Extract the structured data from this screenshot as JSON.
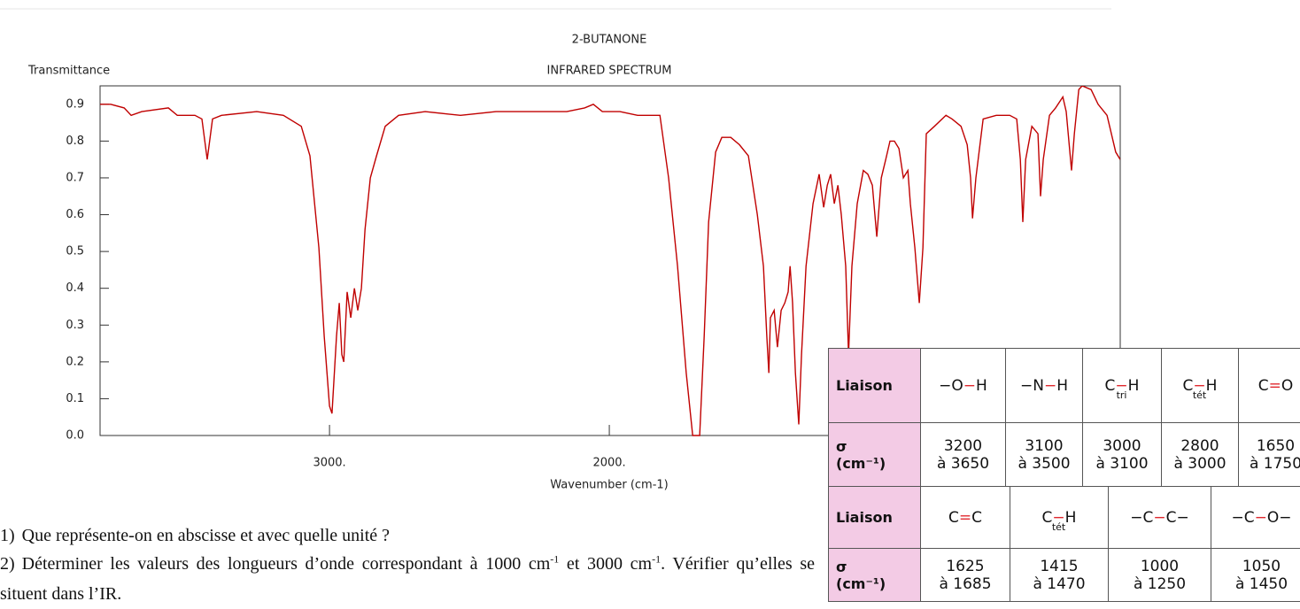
{
  "chart_data": {
    "type": "line",
    "title": "2-BUTANONE",
    "subtitle": "INFRARED SPECTRUM",
    "ylabel": "Transmittance",
    "xlabel": "Wavenumber (cm-1)",
    "color": "#c00000",
    "xlim": [
      3820,
      174
    ],
    "ylim": [
      0,
      0.95
    ],
    "xticks": [
      {
        "value": 3000,
        "label": "3000."
      },
      {
        "value": 2000,
        "label": "2000."
      }
    ],
    "yticks": [
      {
        "value": 0,
        "label": "0.0"
      },
      0.1,
      0.2,
      0.3,
      0.4,
      0.5,
      0.6,
      0.7,
      0.8,
      0.9
    ],
    "x": [
      3820,
      3782,
      3734,
      3709,
      3671,
      3576,
      3544,
      3481,
      3456,
      3437,
      3418,
      3386,
      3260,
      3165,
      3101,
      3070,
      3038,
      3019,
      3000,
      2991,
      2975,
      2965,
      2956,
      2949,
      2937,
      2924,
      2911,
      2899,
      2886,
      2873,
      2854,
      2832,
      2801,
      2753,
      2658,
      2532,
      2405,
      2278,
      2152,
      2088,
      2057,
      2025,
      1962,
      1899,
      1851,
      1819,
      1788,
      1756,
      1725,
      1702,
      1677,
      1661,
      1645,
      1620,
      1598,
      1566,
      1535,
      1503,
      1471,
      1449,
      1437,
      1430,
      1424,
      1411,
      1399,
      1386,
      1373,
      1361,
      1354,
      1345,
      1335,
      1323,
      1313,
      1297,
      1272,
      1250,
      1234,
      1221,
      1209,
      1196,
      1183,
      1171,
      1155,
      1145,
      1133,
      1114,
      1092,
      1076,
      1060,
      1044,
      1028,
      1012,
      997,
      981,
      965,
      949,
      933,
      924,
      908,
      892,
      879,
      867,
      838,
      797,
      775,
      743,
      721,
      709,
      702,
      690,
      664,
      617,
      569,
      544,
      531,
      522,
      512,
      490,
      468,
      459,
      449,
      427,
      405,
      379,
      367,
      348,
      338,
      322,
      310,
      278,
      253,
      221,
      190,
      174
    ],
    "values": [
      0.9,
      0.9,
      0.89,
      0.87,
      0.88,
      0.89,
      0.87,
      0.87,
      0.86,
      0.75,
      0.86,
      0.87,
      0.88,
      0.87,
      0.84,
      0.76,
      0.51,
      0.27,
      0.08,
      0.06,
      0.27,
      0.36,
      0.22,
      0.2,
      0.39,
      0.32,
      0.4,
      0.34,
      0.4,
      0.56,
      0.7,
      0.76,
      0.84,
      0.87,
      0.88,
      0.87,
      0.88,
      0.88,
      0.88,
      0.89,
      0.9,
      0.88,
      0.88,
      0.87,
      0.87,
      0.87,
      0.7,
      0.46,
      0.17,
      0.0,
      0.0,
      0.27,
      0.58,
      0.77,
      0.81,
      0.81,
      0.79,
      0.76,
      0.6,
      0.46,
      0.27,
      0.17,
      0.32,
      0.34,
      0.24,
      0.34,
      0.36,
      0.39,
      0.46,
      0.36,
      0.17,
      0.03,
      0.22,
      0.46,
      0.63,
      0.71,
      0.62,
      0.68,
      0.71,
      0.63,
      0.68,
      0.6,
      0.46,
      0.22,
      0.46,
      0.63,
      0.72,
      0.71,
      0.68,
      0.54,
      0.7,
      0.75,
      0.8,
      0.8,
      0.78,
      0.7,
      0.72,
      0.63,
      0.51,
      0.36,
      0.51,
      0.82,
      0.84,
      0.87,
      0.86,
      0.84,
      0.79,
      0.7,
      0.59,
      0.7,
      0.86,
      0.87,
      0.87,
      0.86,
      0.75,
      0.58,
      0.75,
      0.84,
      0.82,
      0.65,
      0.75,
      0.87,
      0.89,
      0.92,
      0.88,
      0.72,
      0.82,
      0.94,
      0.95,
      0.94,
      0.9,
      0.87,
      0.77,
      0.75
    ]
  },
  "table": {
    "rows": [
      {
        "header": [
          "Liaison"
        ],
        "cells": [
          {
            "parts": [
              "−O",
              "−",
              "H"
            ]
          },
          {
            "parts": [
              "−N",
              "−",
              "H"
            ]
          },
          {
            "parts": [
              "C",
              "−",
              "H"
            ],
            "sub": "tri"
          },
          {
            "parts": [
              "C",
              "−",
              "H"
            ],
            "sub": "tét"
          },
          {
            "parts": [
              "C",
              "=",
              "O"
            ]
          }
        ]
      },
      {
        "header": [
          "σ",
          "(cm⁻¹)"
        ],
        "cells": [
          [
            "3200",
            "à 3650"
          ],
          [
            "3100",
            "à 3500"
          ],
          [
            "3000",
            "à 3100"
          ],
          [
            "2800",
            "à 3000"
          ],
          [
            "1650",
            "à 1750"
          ]
        ]
      },
      {
        "header": [
          "Liaison"
        ],
        "cells": [
          {
            "parts": [
              "C",
              "=",
              "C"
            ]
          },
          {
            "parts": [
              "C",
              "−",
              "H"
            ],
            "sub": "tét"
          },
          {
            "parts": [
              "−C",
              "−",
              "C−"
            ]
          },
          {
            "parts": [
              "−C",
              "−",
              "O−"
            ]
          }
        ]
      },
      {
        "header": [
          "σ",
          "(cm⁻¹)"
        ],
        "cells": [
          [
            "1625",
            "à 1685"
          ],
          [
            "1415",
            "à 1470"
          ],
          [
            "1000",
            "à 1250"
          ],
          [
            "1050",
            "à 1450"
          ]
        ]
      }
    ]
  },
  "questions": [
    {
      "number": "1)",
      "text": [
        "Que représente-on en abscisse et avec quelle unité ?"
      ]
    },
    {
      "number": "2)",
      "text": [
        "Déterminer les valeurs des longueurs d’onde correspondant à 1000 cm",
        "-1",
        " et 3000 cm",
        "-1",
        ". Vérifier qu’elles se situent dans l’IR."
      ]
    }
  ]
}
